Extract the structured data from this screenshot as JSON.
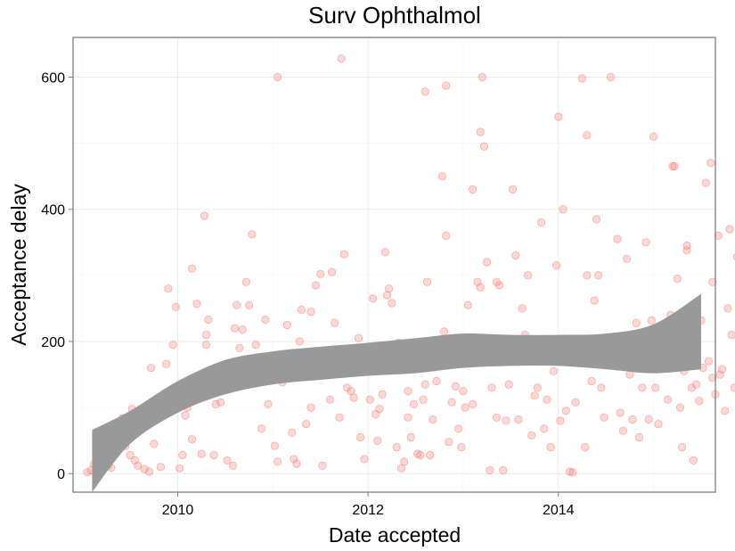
{
  "chart_data": {
    "type": "scatter",
    "title": "Surv Ophthalmol",
    "xlabel": "Date accepted",
    "ylabel": "Acceptance delay",
    "xlim": [
      2008.9,
      2015.65
    ],
    "ylim": [
      -28,
      660
    ],
    "x_ticks": [
      2010,
      2012,
      2014
    ],
    "x_tick_labels": [
      "2010",
      "2012",
      "2014"
    ],
    "y_ticks": [
      0,
      200,
      400,
      600
    ],
    "y_tick_labels": [
      "0",
      "200",
      "400",
      "600"
    ],
    "grid": true,
    "legend": "none",
    "point_color": "#f8766d",
    "band_color": "#999999",
    "points": [
      [
        2009.05,
        2
      ],
      [
        2009.09,
        5
      ],
      [
        2009.12,
        14
      ],
      [
        2009.15,
        8
      ],
      [
        2009.18,
        19
      ],
      [
        2009.2,
        3
      ],
      [
        2009.22,
        10
      ],
      [
        2009.25,
        22
      ],
      [
        2009.27,
        12
      ],
      [
        2009.3,
        9
      ],
      [
        2009.33,
        30
      ],
      [
        2009.38,
        38
      ],
      [
        2009.42,
        84
      ],
      [
        2009.45,
        42
      ],
      [
        2009.5,
        28
      ],
      [
        2009.52,
        98
      ],
      [
        2009.55,
        20
      ],
      [
        2009.58,
        12
      ],
      [
        2009.6,
        88
      ],
      [
        2009.62,
        95
      ],
      [
        2009.65,
        7
      ],
      [
        2009.68,
        92
      ],
      [
        2009.7,
        3
      ],
      [
        2009.72,
        160
      ],
      [
        2009.75,
        45
      ],
      [
        2009.78,
        105
      ],
      [
        2009.82,
        10
      ],
      [
        2009.88,
        166
      ],
      [
        2009.92,
        112
      ],
      [
        2009.96,
        118
      ],
      [
        2009.9,
        280
      ],
      [
        2009.95,
        195
      ],
      [
        2009.98,
        252
      ],
      [
        2010.02,
        8
      ],
      [
        2010.05,
        28
      ],
      [
        2010.08,
        88
      ],
      [
        2010.1,
        100
      ],
      [
        2010.15,
        52
      ],
      [
        2010.15,
        310
      ],
      [
        2010.2,
        257
      ],
      [
        2010.22,
        130
      ],
      [
        2010.25,
        30
      ],
      [
        2010.28,
        390
      ],
      [
        2010.3,
        195
      ],
      [
        2010.3,
        210
      ],
      [
        2010.32,
        233
      ],
      [
        2010.38,
        28
      ],
      [
        2010.45,
        108
      ],
      [
        2010.52,
        20
      ],
      [
        2010.55,
        130
      ],
      [
        2010.58,
        12
      ],
      [
        2010.6,
        220
      ],
      [
        2010.62,
        255
      ],
      [
        2010.65,
        190
      ],
      [
        2010.68,
        218
      ],
      [
        2010.72,
        290
      ],
      [
        2010.75,
        255
      ],
      [
        2010.78,
        362
      ],
      [
        2010.82,
        195
      ],
      [
        2010.88,
        68
      ],
      [
        2010.92,
        233
      ],
      [
        2010.95,
        105
      ],
      [
        2010.98,
        172
      ],
      [
        2011.0,
        165
      ],
      [
        2011.02,
        42
      ],
      [
        2011.05,
        18
      ],
      [
        2011.1,
        138
      ],
      [
        2011.15,
        225
      ],
      [
        2011.2,
        62
      ],
      [
        2011.22,
        22
      ],
      [
        2011.25,
        15
      ],
      [
        2011.28,
        200
      ],
      [
        2011.3,
        248
      ],
      [
        2011.35,
        75
      ],
      [
        2011.4,
        100
      ],
      [
        2011.45,
        285
      ],
      [
        2011.5,
        302
      ],
      [
        2011.52,
        12
      ],
      [
        2011.55,
        160
      ],
      [
        2011.6,
        112
      ],
      [
        2011.62,
        305
      ],
      [
        2011.65,
        228
      ],
      [
        2011.7,
        85
      ],
      [
        2011.75,
        332
      ],
      [
        2011.78,
        130
      ],
      [
        2011.82,
        125
      ],
      [
        2011.85,
        115
      ],
      [
        2011.9,
        205
      ],
      [
        2011.92,
        55
      ],
      [
        2011.96,
        22
      ],
      [
        2011.98,
        168
      ],
      [
        2012.02,
        112
      ],
      [
        2012.05,
        265
      ],
      [
        2012.08,
        90
      ],
      [
        2012.1,
        50
      ],
      [
        2012.12,
        98
      ],
      [
        2012.15,
        120
      ],
      [
        2012.18,
        335
      ],
      [
        2012.2,
        270
      ],
      [
        2012.22,
        280
      ],
      [
        2012.25,
        258
      ],
      [
        2012.28,
        192
      ],
      [
        2012.3,
        40
      ],
      [
        2012.32,
        198
      ],
      [
        2012.35,
        8
      ],
      [
        2012.38,
        18
      ],
      [
        2012.42,
        125
      ],
      [
        2012.45,
        55
      ],
      [
        2012.48,
        105
      ],
      [
        2012.52,
        30
      ],
      [
        2012.55,
        28
      ],
      [
        2012.58,
        112
      ],
      [
        2012.6,
        135
      ],
      [
        2012.62,
        290
      ],
      [
        2012.65,
        28
      ],
      [
        2012.68,
        82
      ],
      [
        2012.72,
        140
      ],
      [
        2012.75,
        172
      ],
      [
        2012.78,
        450
      ],
      [
        2012.8,
        215
      ],
      [
        2012.82,
        360
      ],
      [
        2012.85,
        48
      ],
      [
        2012.88,
        108
      ],
      [
        2012.92,
        132
      ],
      [
        2012.95,
        68
      ],
      [
        2012.98,
        40
      ],
      [
        2013.0,
        125
      ],
      [
        2013.02,
        100
      ],
      [
        2013.05,
        255
      ],
      [
        2013.08,
        172
      ],
      [
        2013.1,
        105
      ],
      [
        2013.12,
        200
      ],
      [
        2013.15,
        290
      ],
      [
        2013.18,
        282
      ],
      [
        2013.22,
        495
      ],
      [
        2013.25,
        320
      ],
      [
        2013.28,
        5
      ],
      [
        2013.3,
        130
      ],
      [
        2013.35,
        85
      ],
      [
        2013.38,
        285
      ],
      [
        2013.42,
        5
      ],
      [
        2013.45,
        80
      ],
      [
        2013.48,
        135
      ],
      [
        2013.52,
        430
      ],
      [
        2013.55,
        330
      ],
      [
        2013.58,
        82
      ],
      [
        2013.62,
        250
      ],
      [
        2013.65,
        210
      ],
      [
        2013.68,
        300
      ],
      [
        2013.72,
        58
      ],
      [
        2013.75,
        118
      ],
      [
        2013.78,
        130
      ],
      [
        2013.82,
        380
      ],
      [
        2013.85,
        68
      ],
      [
        2013.88,
        112
      ],
      [
        2013.92,
        40
      ],
      [
        2013.95,
        155
      ],
      [
        2013.98,
        315
      ],
      [
        2014.02,
        80
      ],
      [
        2014.05,
        400
      ],
      [
        2014.08,
        95
      ],
      [
        2014.12,
        3
      ],
      [
        2014.15,
        2
      ],
      [
        2014.18,
        108
      ],
      [
        2014.22,
        188
      ],
      [
        2014.25,
        598
      ],
      [
        2014.28,
        40
      ],
      [
        2014.3,
        180
      ],
      [
        2014.32,
        190
      ],
      [
        2014.35,
        140
      ],
      [
        2014.38,
        262
      ],
      [
        2014.42,
        300
      ],
      [
        2014.45,
        130
      ],
      [
        2014.48,
        85
      ],
      [
        2014.5,
        190
      ],
      [
        2014.55,
        600
      ],
      [
        2014.58,
        180
      ],
      [
        2014.62,
        162
      ],
      [
        2014.65,
        92
      ],
      [
        2014.68,
        65
      ],
      [
        2014.72,
        325
      ],
      [
        2014.75,
        150
      ],
      [
        2014.78,
        82
      ],
      [
        2014.82,
        228
      ],
      [
        2014.85,
        55
      ],
      [
        2014.88,
        130
      ],
      [
        2014.92,
        350
      ],
      [
        2014.95,
        82
      ],
      [
        2014.98,
        232
      ],
      [
        2015.02,
        130
      ],
      [
        2015.05,
        75
      ],
      [
        2015.08,
        195
      ],
      [
        2015.12,
        162
      ],
      [
        2015.15,
        112
      ],
      [
        2015.18,
        240
      ],
      [
        2015.22,
        465
      ],
      [
        2015.25,
        295
      ],
      [
        2015.28,
        100
      ],
      [
        2015.3,
        40
      ],
      [
        2015.32,
        155
      ],
      [
        2015.35,
        345
      ],
      [
        2015.38,
        170
      ],
      [
        2015.4,
        130
      ],
      [
        2015.42,
        20
      ],
      [
        2015.45,
        135
      ],
      [
        2015.48,
        110
      ],
      [
        2015.5,
        232
      ],
      [
        2015.52,
        160
      ],
      [
        2015.55,
        440
      ],
      [
        2015.58,
        170
      ],
      [
        2015.6,
        470
      ],
      [
        2015.62,
        290
      ],
      [
        2015.62,
        145
      ],
      [
        2015.65,
        120
      ],
      [
        2015.68,
        360
      ],
      [
        2015.7,
        150
      ],
      [
        2015.72,
        158
      ],
      [
        2015.75,
        95
      ],
      [
        2015.78,
        250
      ],
      [
        2015.8,
        370
      ],
      [
        2015.82,
        210
      ],
      [
        2015.85,
        130
      ],
      [
        2015.88,
        328
      ],
      [
        2015.9,
        170
      ],
      [
        2015.92,
        210
      ],
      [
        2011.05,
        600
      ],
      [
        2011.72,
        628
      ],
      [
        2012.6,
        578
      ],
      [
        2012.82,
        587
      ],
      [
        2013.2,
        600
      ],
      [
        2013.18,
        517
      ],
      [
        2014.0,
        540
      ],
      [
        2014.3,
        512
      ],
      [
        2014.4,
        385
      ],
      [
        2015.2,
        465
      ],
      [
        2014.3,
        300
      ],
      [
        2015.0,
        510
      ],
      [
        2013.1,
        430
      ],
      [
        2013.35,
        290
      ],
      [
        2014.62,
        355
      ],
      [
        2015.35,
        338
      ],
      [
        2014.85,
        205
      ],
      [
        2012.42,
        85
      ],
      [
        2010.4,
        105
      ],
      [
        2011.4,
        245
      ]
    ],
    "band_x": [
      2009.1,
      2009.5,
      2010.0,
      2010.5,
      2011.0,
      2011.5,
      2012.0,
      2012.5,
      2013.0,
      2013.5,
      2014.0,
      2014.5,
      2015.0,
      2015.5
    ],
    "band_lower": [
      -28,
      45,
      92,
      120,
      135,
      142,
      148,
      152,
      160,
      163,
      163,
      158,
      152,
      158
    ],
    "band_upper": [
      66,
      95,
      140,
      172,
      185,
      192,
      198,
      205,
      212,
      210,
      210,
      212,
      226,
      272
    ]
  }
}
